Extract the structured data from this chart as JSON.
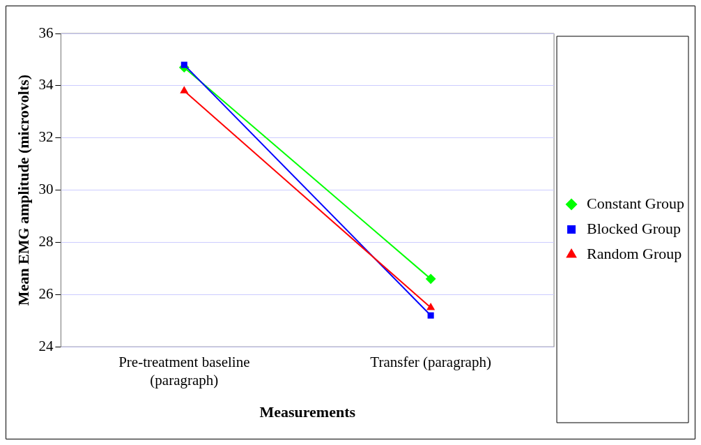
{
  "chart_data": {
    "type": "line",
    "xlabel": "Measurements",
    "ylabel": "Mean EMG amplitude (microvolts)",
    "categories": [
      "Pre-treatment baseline (paragraph)",
      "Transfer (paragraph)"
    ],
    "series": [
      {
        "name": "Constant Group",
        "color": "#00ff00",
        "marker": "diamond",
        "values": [
          34.7,
          26.6
        ]
      },
      {
        "name": "Blocked Group",
        "color": "#0000ff",
        "marker": "square",
        "values": [
          34.8,
          25.2
        ]
      },
      {
        "name": "Random Group",
        "color": "#ff0000",
        "marker": "triangle",
        "values": [
          33.8,
          25.5
        ]
      }
    ],
    "ylim": [
      24,
      36
    ],
    "yticks": [
      24,
      26,
      28,
      30,
      32,
      34,
      36
    ],
    "grid": "y",
    "legend": "right",
    "line_style": "solid"
  }
}
